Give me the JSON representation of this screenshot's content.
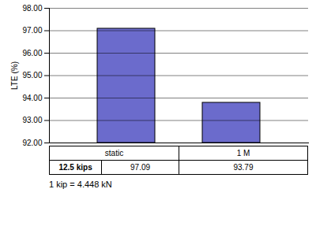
{
  "chart_data": {
    "type": "bar",
    "categories": [
      "static",
      "1 M"
    ],
    "values": [
      97.09,
      93.79
    ],
    "color": "#6B6BCC",
    "ylabel": "LTE (%)",
    "ylim": [
      92.0,
      98.0
    ],
    "yticks": [
      {
        "value": 92.0,
        "label": "92.00"
      },
      {
        "value": 93.0,
        "label": "93.00"
      },
      {
        "value": 94.0,
        "label": "94.00"
      },
      {
        "value": 95.0,
        "label": "95.00"
      },
      {
        "value": 96.0,
        "label": "96.00"
      },
      {
        "value": 97.0,
        "label": "97.00"
      },
      {
        "value": 98.0,
        "label": "98.00"
      }
    ],
    "grid": true,
    "data_labels": true,
    "row_label": "12.5 kips",
    "footnote": "1 kip = 4.448 kN"
  }
}
